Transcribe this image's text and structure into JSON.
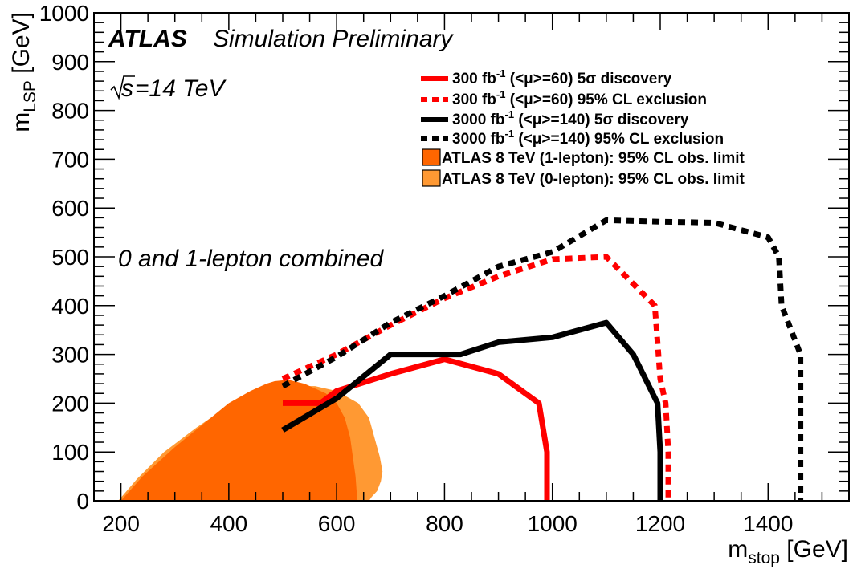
{
  "chart_data": {
    "type": "line",
    "experiment_label": "ATLAS",
    "experiment_sublabel": "Simulation Preliminary",
    "energy_prefix": "s",
    "energy_label": "=14 TeV",
    "annotation": "0 and 1-lepton combined",
    "xlabel_main": "m",
    "xlabel_sub": "stop",
    "xlabel_unit": " [GeV]",
    "ylabel_main": "m",
    "ylabel_sub": "LSP",
    "ylabel_unit": " [GeV]",
    "xlim": [
      150,
      1550
    ],
    "ylim": [
      0,
      1000
    ],
    "xticks": [
      200,
      400,
      600,
      800,
      1000,
      1200,
      1400
    ],
    "yticks": [
      0,
      100,
      200,
      300,
      400,
      500,
      600,
      700,
      800,
      900,
      1000
    ],
    "series": [
      {
        "name": "300 fb-1 5sigma discovery",
        "legend": {
          "pre": "300 fb",
          "sup": "-1",
          "post": " (<μ>=60) 5σ discovery"
        },
        "color": "#ff0000",
        "dashed": false,
        "x": [
          500,
          570,
          600,
          700,
          800,
          900,
          975,
          990,
          990
        ],
        "y": [
          200,
          200,
          225,
          260,
          290,
          260,
          200,
          100,
          0
        ]
      },
      {
        "name": "300 fb-1 95% CL exclusion",
        "legend": {
          "pre": "300 fb",
          "sup": "-1",
          "post": " (<μ>=60) 95% CL exclusion"
        },
        "color": "#ff0000",
        "dashed": true,
        "x": [
          500,
          600,
          700,
          800,
          900,
          1000,
          1100,
          1190,
          1200,
          1210,
          1215,
          1215
        ],
        "y": [
          250,
          300,
          360,
          415,
          460,
          495,
          500,
          400,
          250,
          200,
          100,
          0
        ]
      },
      {
        "name": "3000 fb-1 5sigma discovery",
        "legend": {
          "pre": "3000 fb",
          "sup": "-1",
          "post": " (<μ>=140) 5σ discovery"
        },
        "color": "#000000",
        "dashed": false,
        "x": [
          500,
          600,
          700,
          830,
          900,
          1000,
          1100,
          1150,
          1195,
          1200,
          1200
        ],
        "y": [
          145,
          210,
          300,
          300,
          325,
          335,
          365,
          300,
          200,
          100,
          0
        ]
      },
      {
        "name": "3000 fb-1 95% CL exclusion",
        "legend": {
          "pre": "3000 fb",
          "sup": "-1",
          "post": " (<μ>=140) 95% CL exclusion"
        },
        "color": "#000000",
        "dashed": true,
        "x": [
          500,
          600,
          700,
          800,
          900,
          1000,
          1100,
          1200,
          1300,
          1400,
          1420,
          1425,
          1460,
          1460
        ],
        "y": [
          235,
          295,
          365,
          420,
          480,
          510,
          575,
          572,
          570,
          540,
          500,
          400,
          300,
          0
        ]
      }
    ],
    "areas": [
      {
        "name": "ATLAS 8 TeV (0-lepton)",
        "legend": "ATLAS 8 TeV (0-lepton): 95% CL obs. limit",
        "color": "#ff9933",
        "x": [
          195,
          230,
          280,
          340,
          400,
          440,
          480,
          520,
          560,
          600,
          640,
          660,
          670,
          680,
          685,
          682,
          675,
          665,
          660
        ],
        "y": [
          0,
          45,
          100,
          150,
          195,
          215,
          230,
          235,
          235,
          225,
          200,
          170,
          130,
          90,
          60,
          40,
          20,
          8,
          0
        ]
      },
      {
        "name": "ATLAS 8 TeV (1-lepton)",
        "legend": "ATLAS 8 TeV (1-lepton): 95% CL obs. limit",
        "color": "#ff6600",
        "x": [
          200,
          240,
          300,
          350,
          400,
          440,
          460,
          470,
          485,
          510,
          540,
          560,
          580,
          600,
          615,
          625,
          630,
          635,
          637,
          637
        ],
        "y": [
          0,
          50,
          110,
          155,
          200,
          225,
          235,
          240,
          245,
          248,
          240,
          230,
          220,
          200,
          170,
          130,
          90,
          50,
          20,
          0
        ]
      }
    ]
  }
}
